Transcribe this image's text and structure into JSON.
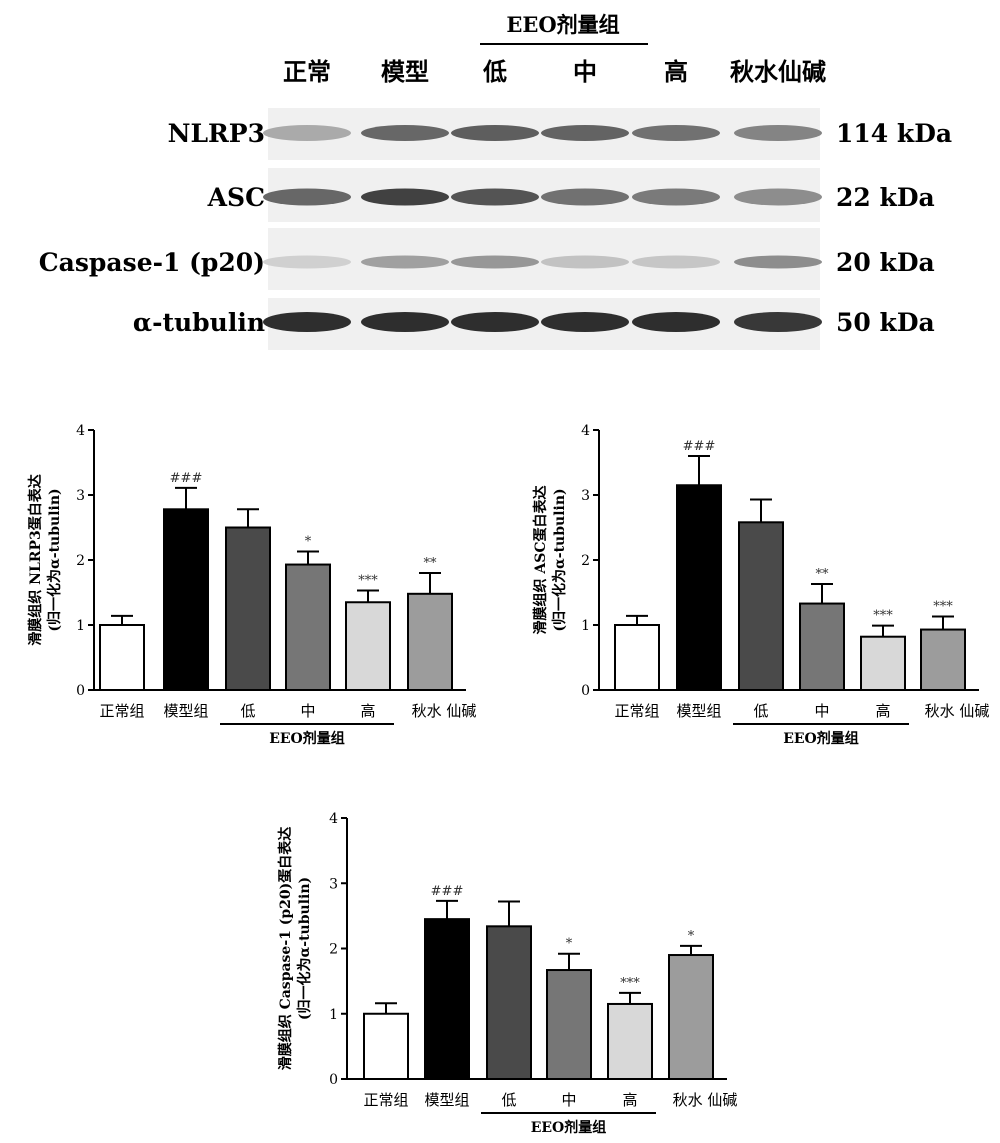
{
  "blot": {
    "header_group": "EEO剂量组",
    "lanes": [
      "正常",
      "模型",
      "低",
      "中",
      "高",
      "秋水仙碱"
    ],
    "rows": [
      {
        "protein": "NLRP3",
        "size": "114 kDa",
        "intensity": [
          0.35,
          0.7,
          0.75,
          0.72,
          0.65,
          0.55
        ]
      },
      {
        "protein": "ASC",
        "size": "22 kDa",
        "intensity": [
          0.7,
          0.9,
          0.8,
          0.65,
          0.6,
          0.5
        ]
      },
      {
        "protein": "Caspase-1 (p20)",
        "size": "20 kDa",
        "intensity": [
          0.15,
          0.4,
          0.45,
          0.22,
          0.2,
          0.5
        ]
      },
      {
        "protein": "α-tubulin",
        "size": "50 kDa",
        "intensity": [
          1.0,
          1.0,
          1.0,
          1.0,
          1.0,
          0.95
        ]
      }
    ]
  },
  "chart_data": [
    {
      "type": "bar",
      "ylabel_line1": "滑膜组织 NLRP3蛋白表达",
      "ylabel_line2": "(归一化为α-tubulin)",
      "ylim": [
        0,
        4
      ],
      "yticks": [
        "0",
        "1",
        "2",
        "3",
        "4"
      ],
      "categories": [
        "正常组",
        "模型组",
        "低",
        "中",
        "高",
        "秋水 仙碱"
      ],
      "group_label": "EEO剂量组",
      "values": [
        1.0,
        2.78,
        2.5,
        1.93,
        1.35,
        1.48
      ],
      "errors": [
        0.14,
        0.33,
        0.28,
        0.2,
        0.18,
        0.32
      ],
      "annotations": [
        "",
        "###",
        "",
        "*",
        "***",
        "**"
      ],
      "colors": [
        "#ffffff",
        "#000000",
        "#4a4a4a",
        "#767676",
        "#d8d8d8",
        "#9c9c9c"
      ]
    },
    {
      "type": "bar",
      "ylabel_line1": "滑膜组织 ASC蛋白表达",
      "ylabel_line2": "(归一化为α-tubulin)",
      "ylim": [
        0,
        4
      ],
      "yticks": [
        "0",
        "1",
        "2",
        "3",
        "4"
      ],
      "categories": [
        "正常组",
        "模型组",
        "低",
        "中",
        "高",
        "秋水 仙碱"
      ],
      "group_label": "EEO剂量组",
      "values": [
        1.0,
        3.15,
        2.58,
        1.33,
        0.82,
        0.93
      ],
      "errors": [
        0.14,
        0.45,
        0.35,
        0.3,
        0.17,
        0.2
      ],
      "annotations": [
        "",
        "###",
        "",
        "**",
        "***",
        "***"
      ],
      "colors": [
        "#ffffff",
        "#000000",
        "#4a4a4a",
        "#767676",
        "#d8d8d8",
        "#9c9c9c"
      ]
    },
    {
      "type": "bar",
      "ylabel_line1": "滑膜组织 Caspase-1 (p20)蛋白表达",
      "ylabel_line2": "(归一化为α-tubulin)",
      "ylim": [
        0,
        4
      ],
      "yticks": [
        "0",
        "1",
        "2",
        "3",
        "4"
      ],
      "categories": [
        "正常组",
        "模型组",
        "低",
        "中",
        "高",
        "秋水 仙碱"
      ],
      "group_label": "EEO剂量组",
      "values": [
        1.0,
        2.45,
        2.34,
        1.67,
        1.15,
        1.9
      ],
      "errors": [
        0.16,
        0.28,
        0.38,
        0.25,
        0.17,
        0.14
      ],
      "annotations": [
        "",
        "###",
        "",
        "*",
        "***",
        "*"
      ],
      "colors": [
        "#ffffff",
        "#000000",
        "#4a4a4a",
        "#767676",
        "#d8d8d8",
        "#9c9c9c"
      ]
    }
  ]
}
